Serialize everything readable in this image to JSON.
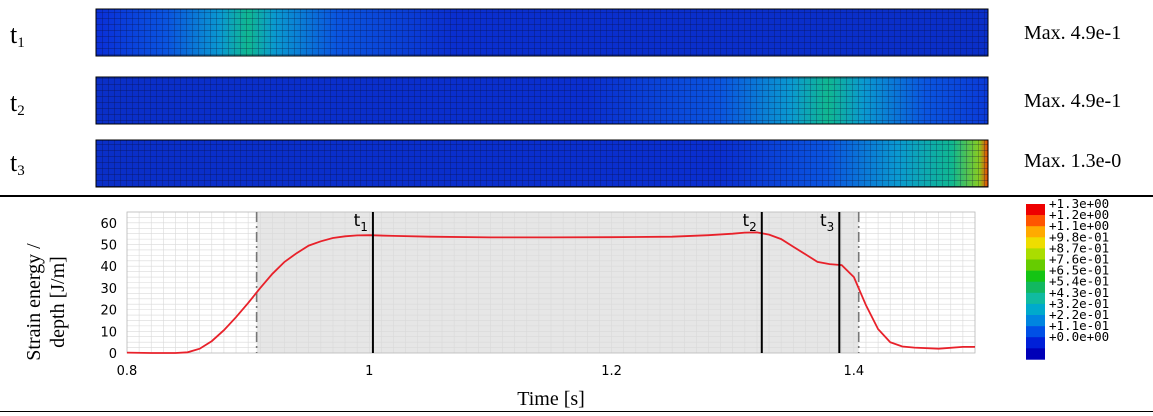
{
  "snapshots": [
    {
      "label_base": "t",
      "label_sub": "1",
      "max_text": "Max. 4.9e-1",
      "peak_frac": 0.17,
      "peak_value": 0.49,
      "peak_side": "center"
    },
    {
      "label_base": "t",
      "label_sub": "2",
      "max_text": "Max. 4.9e-1",
      "peak_frac": 0.82,
      "peak_value": 0.49,
      "peak_side": "center"
    },
    {
      "label_base": "t",
      "label_sub": "3",
      "max_text": "Max. 1.3e-0",
      "peak_frac": 1.0,
      "peak_value": 1.3,
      "peak_side": "right"
    }
  ],
  "colors": {
    "curve": "#e8212a",
    "grid": "#d9d9d9",
    "shade": "#e6e6e6",
    "marker_line": "#000000",
    "dashdot": "#777777",
    "colormap": [
      "#0000b8",
      "#0020d8",
      "#0050e6",
      "#0085e0",
      "#00aacc",
      "#10bba0",
      "#12b860",
      "#14c414",
      "#66cc00",
      "#aadd00",
      "#eedd00",
      "#ffaa00",
      "#ff5500",
      "#ee0000"
    ]
  },
  "legend": {
    "labels": [
      "+1.3e+00",
      "+1.2e+00",
      "+1.1e+00",
      "+9.8e-01",
      "+8.7e-01",
      "+7.6e-01",
      "+6.5e-01",
      "+5.4e-01",
      "+4.3e-01",
      "+3.2e-01",
      "+2.2e-01",
      "+1.1e-01",
      "+0.0e+00"
    ]
  },
  "chart_data": {
    "type": "line",
    "xlabel": "Time [s]",
    "ylabel_line1": "Strain energy /",
    "ylabel_line2": "depth [J/m]",
    "xlim": [
      0.8,
      1.5
    ],
    "ylim": [
      0,
      65
    ],
    "xticks": [
      0.8,
      1.0,
      1.2,
      1.4
    ],
    "xtick_labels": [
      "0.8",
      "1",
      "1.2",
      "1.4"
    ],
    "yticks": [
      0,
      10,
      20,
      30,
      40,
      50,
      60
    ],
    "grid": true,
    "shaded_region": [
      0.907,
      1.404
    ],
    "dashdot_lines": [
      0.907,
      1.404
    ],
    "markers": [
      {
        "x": 1.003,
        "label_base": "t",
        "label_sub": "1",
        "label_side": "left"
      },
      {
        "x": 1.324,
        "label_base": "t",
        "label_sub": "2",
        "label_side": "left"
      },
      {
        "x": 1.388,
        "label_base": "t",
        "label_sub": "3",
        "label_side": "left"
      }
    ],
    "series": [
      {
        "x": [
          0.8,
          0.82,
          0.84,
          0.85,
          0.86,
          0.87,
          0.88,
          0.89,
          0.9,
          0.91,
          0.92,
          0.93,
          0.94,
          0.95,
          0.96,
          0.97,
          0.98,
          0.99,
          1.0,
          1.02,
          1.05,
          1.1,
          1.15,
          1.2,
          1.25,
          1.28,
          1.3,
          1.31,
          1.32,
          1.33,
          1.34,
          1.35,
          1.36,
          1.37,
          1.38,
          1.39,
          1.4,
          1.41,
          1.42,
          1.43,
          1.44,
          1.45,
          1.47,
          1.49,
          1.5
        ],
        "y": [
          0.2,
          0,
          0,
          0.3,
          2,
          5.5,
          10.5,
          16.5,
          23,
          30,
          36.5,
          42,
          46,
          49.5,
          51.5,
          53,
          53.8,
          54.2,
          54.3,
          54,
          53.6,
          53.3,
          53.3,
          53.4,
          53.6,
          54.3,
          55,
          55.5,
          55.6,
          54.6,
          52.5,
          49,
          45.5,
          42,
          41,
          40.5,
          35,
          22,
          11,
          5,
          3,
          2.5,
          2,
          2.8,
          2.8
        ]
      }
    ]
  }
}
